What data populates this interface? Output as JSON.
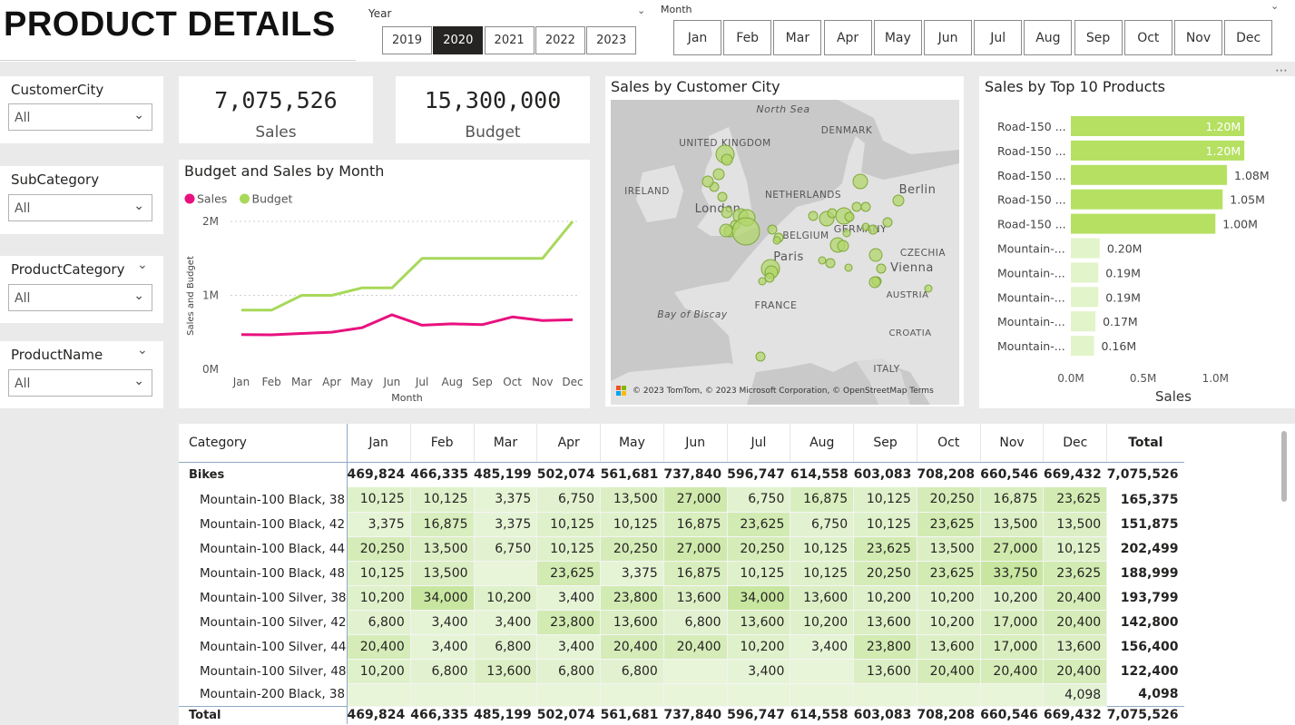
{
  "page_title": "PRODUCT DETAILS",
  "year_slicer": {
    "label": "Year",
    "options": [
      "2019",
      "2020",
      "2021",
      "2022",
      "2023"
    ],
    "selected": "2020"
  },
  "month_slicer": {
    "label": "Month",
    "options": [
      "Jan",
      "Feb",
      "Mar",
      "Apr",
      "May",
      "Jun",
      "Jul",
      "Aug",
      "Sep",
      "Oct",
      "Nov",
      "Dec"
    ]
  },
  "filters": [
    {
      "label": "CustomerCity",
      "value": "All"
    },
    {
      "label": "SubCategory",
      "value": "All"
    },
    {
      "label": "ProductCategory",
      "value": "All"
    },
    {
      "label": "ProductName",
      "value": "All"
    }
  ],
  "kpis": {
    "sales_value": "7,075,526",
    "sales_label": "Sales",
    "budget_value": "15,300,000",
    "budget_label": "Budget"
  },
  "line_chart": {
    "title": "Budget and Sales by Month"
  },
  "map": {
    "title": "Sales by Customer City",
    "labels": [
      "North Sea",
      "DENMARK",
      "UNITED KINGDOM",
      "IRELAND",
      "NETHERLANDS",
      "Berlin",
      "London",
      "GERMANY",
      "BELGIUM",
      "CZECHIA",
      "Paris",
      "Vienna",
      "FRANCE",
      "AUSTRIA",
      "Bay of Biscay",
      "CROATIA",
      "ITALY"
    ],
    "attribution": "© 2023 TomTom, © 2023 Microsoft Corporation, © OpenStreetMap  Terms"
  },
  "bar_chart": {
    "title": "Sales by Top 10 Products"
  },
  "chart_data": [
    {
      "type": "line",
      "title": "Budget and Sales by Month",
      "xlabel": "Month",
      "ylabel": "Sales and Budget",
      "categories": [
        "Jan",
        "Feb",
        "Mar",
        "Apr",
        "May",
        "Jun",
        "Jul",
        "Aug",
        "Sep",
        "Oct",
        "Nov",
        "Dec"
      ],
      "series": [
        {
          "name": "Sales",
          "color": "#e8117f",
          "values": [
            469824,
            466335,
            485199,
            502074,
            561681,
            737840,
            596747,
            614558,
            603083,
            708208,
            660546,
            669432
          ]
        },
        {
          "name": "Budget",
          "color": "#a8d85a",
          "values": [
            800000,
            800000,
            1000000,
            1000000,
            1100000,
            1100000,
            1500000,
            1500000,
            1500000,
            1500000,
            1500000,
            2000000
          ]
        }
      ],
      "yticks": [
        "0M",
        "1M",
        "2M"
      ],
      "ylim": [
        0,
        2000000
      ],
      "legend": "top-left"
    },
    {
      "type": "bar",
      "orientation": "horizontal",
      "title": "Sales by Top 10 Products",
      "xlabel": "Sales",
      "categories": [
        "Road-150 ...",
        "Road-150 ...",
        "Road-150 ...",
        "Road-150 ...",
        "Road-150 ...",
        "Mountain-...",
        "Mountain-...",
        "Mountain-...",
        "Mountain-...",
        "Mountain-..."
      ],
      "values": [
        1.2,
        1.2,
        1.08,
        1.05,
        1.0,
        0.2,
        0.19,
        0.19,
        0.17,
        0.16
      ],
      "value_labels": [
        "1.20M",
        "1.20M",
        "1.08M",
        "1.05M",
        "1.00M",
        "0.20M",
        "0.19M",
        "0.19M",
        "0.17M",
        "0.16M"
      ],
      "xticks": [
        "0.0M",
        "0.5M",
        "1.0M"
      ],
      "xlim": [
        0,
        1.4
      ],
      "colors": {
        "top": "#b5e061",
        "rest": "#e2f4c9"
      }
    }
  ],
  "matrix": {
    "headers": [
      "Category",
      "Jan",
      "Feb",
      "Mar",
      "Apr",
      "May",
      "Jun",
      "Jul",
      "Aug",
      "Sep",
      "Oct",
      "Nov",
      "Dec",
      "Total"
    ],
    "rows": [
      {
        "label": "Bikes",
        "level": 0,
        "cells": [
          "469,824",
          "466,335",
          "485,199",
          "502,074",
          "561,681",
          "737,840",
          "596,747",
          "614,558",
          "603,083",
          "708,208",
          "660,546",
          "669,432",
          "7,075,526"
        ]
      },
      {
        "label": "Mountain-100 Black, 38",
        "level": 1,
        "cells": [
          "10,125",
          "10,125",
          "3,375",
          "6,750",
          "13,500",
          "27,000",
          "6,750",
          "16,875",
          "10,125",
          "20,250",
          "16,875",
          "23,625",
          "165,375"
        ]
      },
      {
        "label": "Mountain-100 Black, 42",
        "level": 1,
        "cells": [
          "3,375",
          "16,875",
          "3,375",
          "10,125",
          "10,125",
          "16,875",
          "23,625",
          "6,750",
          "10,125",
          "23,625",
          "13,500",
          "13,500",
          "151,875"
        ]
      },
      {
        "label": "Mountain-100 Black, 44",
        "level": 1,
        "cells": [
          "20,250",
          "13,500",
          "6,750",
          "10,125",
          "20,250",
          "27,000",
          "20,250",
          "10,125",
          "23,625",
          "13,500",
          "27,000",
          "10,125",
          "202,499"
        ]
      },
      {
        "label": "Mountain-100 Black, 48",
        "level": 1,
        "cells": [
          "10,125",
          "13,500",
          "",
          "23,625",
          "3,375",
          "16,875",
          "10,125",
          "10,125",
          "20,250",
          "23,625",
          "33,750",
          "23,625",
          "188,999"
        ]
      },
      {
        "label": "Mountain-100 Silver, 38",
        "level": 1,
        "cells": [
          "10,200",
          "34,000",
          "10,200",
          "3,400",
          "23,800",
          "13,600",
          "34,000",
          "13,600",
          "10,200",
          "10,200",
          "10,200",
          "20,400",
          "193,799"
        ]
      },
      {
        "label": "Mountain-100 Silver, 42",
        "level": 1,
        "cells": [
          "6,800",
          "3,400",
          "3,400",
          "23,800",
          "13,600",
          "6,800",
          "13,600",
          "10,200",
          "13,600",
          "10,200",
          "17,000",
          "20,400",
          "142,800"
        ]
      },
      {
        "label": "Mountain-100 Silver, 44",
        "level": 1,
        "cells": [
          "20,400",
          "3,400",
          "6,800",
          "3,400",
          "20,400",
          "20,400",
          "10,200",
          "3,400",
          "23,800",
          "13,600",
          "17,000",
          "13,600",
          "156,400"
        ]
      },
      {
        "label": "Mountain-100 Silver, 48",
        "level": 1,
        "cells": [
          "10,200",
          "6,800",
          "13,600",
          "6,800",
          "6,800",
          "",
          "3,400",
          "",
          "13,600",
          "20,400",
          "20,400",
          "20,400",
          "122,400"
        ]
      },
      {
        "label": "Mountain-200 Black, 38",
        "level": 1,
        "cells": [
          "",
          "",
          "",
          "",
          "",
          "",
          "",
          "",
          "",
          "",
          "",
          "4,098",
          "4,098"
        ]
      },
      {
        "label": "Total",
        "level": 0,
        "cells": [
          "469,824",
          "466,335",
          "485,199",
          "502,074",
          "561,681",
          "737,840",
          "596,747",
          "614,558",
          "603,083",
          "708,208",
          "660,546",
          "669,432",
          "7,075,526"
        ]
      }
    ]
  }
}
